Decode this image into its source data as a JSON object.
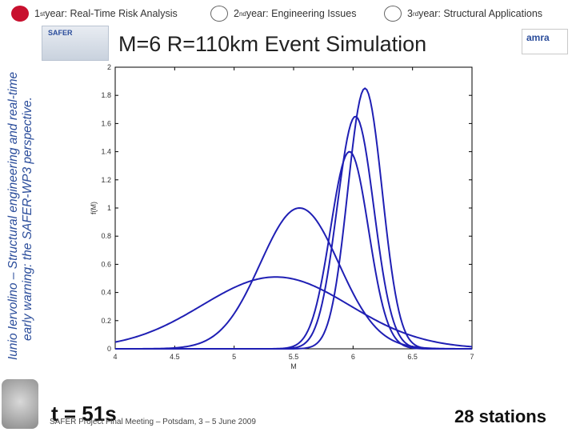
{
  "nav": {
    "items": [
      {
        "num": "1",
        "sup": "st",
        "label": " year: Real-Time Risk Analysis",
        "active": true
      },
      {
        "num": "2",
        "sup": "nd",
        "label": " year: Engineering Issues",
        "active": false
      },
      {
        "num": "3",
        "sup": "rd",
        "label": " year: Structural Applications",
        "active": false
      }
    ]
  },
  "side": {
    "line1": "Iunio Iervolino – Structural engineering and real-time",
    "line2": "early warning: the SAFER-WP3 perspective."
  },
  "logo_safer": "SAFER",
  "logo_amra": "amra",
  "slide": {
    "title": "M=6 R=110km Event Simulation",
    "time_text": "t = 51s",
    "stations_text": "28 stations",
    "footer": "SAFER Project Final Meeting – Potsdam, 3 – 5 June 2009"
  },
  "chart_data": {
    "type": "line",
    "xlabel": "M",
    "ylabel": "f(M)",
    "xlim": [
      4,
      7
    ],
    "ylim": [
      0,
      2
    ],
    "xticks": [
      "4",
      "4.5",
      "5",
      "5.5",
      "6",
      "6.5",
      "7"
    ],
    "yticks": [
      "0",
      "0.2",
      "0.4",
      "0.6",
      "0.8",
      "1",
      "1.2",
      "1.4",
      "1.6",
      "1.8",
      "2"
    ],
    "series": [
      {
        "name": "curve-1",
        "mu": 5.35,
        "sigma": 0.62,
        "amp": 0.51
      },
      {
        "name": "curve-2",
        "mu": 5.55,
        "sigma": 0.33,
        "amp": 1.0
      },
      {
        "name": "curve-3",
        "mu": 5.97,
        "sigma": 0.16,
        "amp": 1.4
      },
      {
        "name": "curve-4",
        "mu": 6.02,
        "sigma": 0.155,
        "amp": 1.65
      },
      {
        "name": "curve-5",
        "mu": 6.1,
        "sigma": 0.145,
        "amp": 1.85
      }
    ],
    "color": "#1f1fb4"
  }
}
